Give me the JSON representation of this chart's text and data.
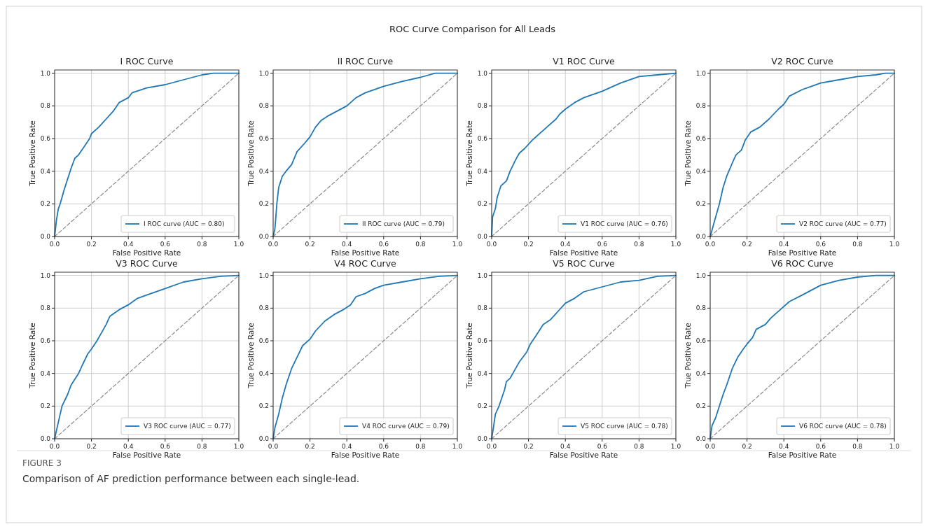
{
  "chart_data": [
    {
      "type": "line",
      "title": "I ROC Curve",
      "xlabel": "False Positive Rate",
      "ylabel": "True Positive Rate",
      "annotations": [
        "ROC Curve Comparison for All Leads"
      ],
      "xlim": [
        0,
        1
      ],
      "ylim": [
        0,
        1.02
      ],
      "xticks": [
        {
          "value": 0,
          "label": "0.0"
        },
        {
          "value": 0.2,
          "label": "0.2"
        },
        {
          "value": 0.4,
          "label": "0.4"
        },
        {
          "value": 0.6,
          "label": "0.6"
        },
        {
          "value": 0.8,
          "label": "0.8"
        },
        {
          "value": 1,
          "label": "1.0"
        }
      ],
      "yticks": [
        {
          "value": 0,
          "label": "0.0"
        },
        {
          "value": 0.2,
          "label": "0.2"
        },
        {
          "value": 0.4,
          "label": "0.4"
        },
        {
          "value": 0.6,
          "label": "0.6"
        },
        {
          "value": 0.8,
          "label": "0.8"
        },
        {
          "value": 1,
          "label": "1.0"
        }
      ],
      "grid": true,
      "legend": "bottom right",
      "series": [
        {
          "name": "I ROC curve (AUC = 0.80)",
          "color": "#1f77b4",
          "x": [
            0,
            0.01,
            0.02,
            0.03,
            0.05,
            0.07,
            0.09,
            0.11,
            0.13,
            0.16,
            0.19,
            0.2,
            0.24,
            0.28,
            0.32,
            0.35,
            0.4,
            0.42,
            0.5,
            0.6,
            0.7,
            0.8,
            0.86,
            1
          ],
          "values": [
            0,
            0.1,
            0.17,
            0.2,
            0.28,
            0.35,
            0.42,
            0.48,
            0.5,
            0.55,
            0.6,
            0.63,
            0.67,
            0.72,
            0.77,
            0.82,
            0.85,
            0.88,
            0.91,
            0.93,
            0.96,
            0.99,
            1,
            1
          ]
        },
        {
          "color": "#808080",
          "line_style": "dashed",
          "x": [
            0,
            1
          ],
          "values": [
            0,
            1
          ]
        }
      ]
    },
    {
      "type": "line",
      "title": "II ROC Curve",
      "xlabel": "False Positive Rate",
      "ylabel": "True Positive Rate",
      "xlim": [
        0,
        1
      ],
      "ylim": [
        0,
        1.02
      ],
      "xticks": [
        {
          "value": 0,
          "label": "0.0"
        },
        {
          "value": 0.2,
          "label": "0.2"
        },
        {
          "value": 0.4,
          "label": "0.4"
        },
        {
          "value": 0.6,
          "label": "0.6"
        },
        {
          "value": 0.8,
          "label": "0.8"
        },
        {
          "value": 1,
          "label": "1.0"
        }
      ],
      "yticks": [
        {
          "value": 0,
          "label": "0.0"
        },
        {
          "value": 0.2,
          "label": "0.2"
        },
        {
          "value": 0.4,
          "label": "0.4"
        },
        {
          "value": 0.6,
          "label": "0.6"
        },
        {
          "value": 0.8,
          "label": "0.8"
        },
        {
          "value": 1,
          "label": "1.0"
        }
      ],
      "grid": true,
      "legend": "bottom right",
      "series": [
        {
          "name": "II ROC curve (AUC = 0.79)",
          "color": "#1f77b4",
          "x": [
            0,
            0.01,
            0.02,
            0.03,
            0.05,
            0.07,
            0.1,
            0.13,
            0.17,
            0.2,
            0.23,
            0.26,
            0.3,
            0.35,
            0.4,
            0.45,
            0.5,
            0.6,
            0.7,
            0.8,
            0.88,
            1
          ],
          "values": [
            0,
            0.05,
            0.2,
            0.3,
            0.37,
            0.4,
            0.44,
            0.52,
            0.57,
            0.61,
            0.67,
            0.71,
            0.74,
            0.77,
            0.8,
            0.85,
            0.88,
            0.92,
            0.95,
            0.975,
            1,
            1
          ]
        },
        {
          "color": "#808080",
          "line_style": "dashed",
          "x": [
            0,
            1
          ],
          "values": [
            0,
            1
          ]
        }
      ]
    },
    {
      "type": "line",
      "title": "V1 ROC Curve",
      "xlabel": "False Positive Rate",
      "ylabel": "True Positive Rate",
      "xlim": [
        0,
        1
      ],
      "ylim": [
        0,
        1.02
      ],
      "xticks": [
        {
          "value": 0,
          "label": "0.0"
        },
        {
          "value": 0.2,
          "label": "0.2"
        },
        {
          "value": 0.4,
          "label": "0.4"
        },
        {
          "value": 0.6,
          "label": "0.6"
        },
        {
          "value": 0.8,
          "label": "0.8"
        },
        {
          "value": 1,
          "label": "1.0"
        }
      ],
      "yticks": [
        {
          "value": 0,
          "label": "0.0"
        },
        {
          "value": 0.2,
          "label": "0.2"
        },
        {
          "value": 0.4,
          "label": "0.4"
        },
        {
          "value": 0.6,
          "label": "0.6"
        },
        {
          "value": 0.8,
          "label": "0.8"
        },
        {
          "value": 1,
          "label": "1.0"
        }
      ],
      "grid": true,
      "legend": "bottom right",
      "series": [
        {
          "name": "V1 ROC curve (AUC = 0.76)",
          "color": "#1f77b4",
          "x": [
            0,
            0.005,
            0.02,
            0.03,
            0.05,
            0.08,
            0.1,
            0.13,
            0.15,
            0.18,
            0.22,
            0.27,
            0.3,
            0.35,
            0.37,
            0.4,
            0.45,
            0.5,
            0.6,
            0.7,
            0.8,
            0.9,
            1
          ],
          "values": [
            0,
            0.12,
            0.17,
            0.24,
            0.31,
            0.34,
            0.4,
            0.47,
            0.51,
            0.54,
            0.59,
            0.64,
            0.67,
            0.72,
            0.75,
            0.78,
            0.82,
            0.85,
            0.89,
            0.94,
            0.98,
            0.99,
            1
          ]
        },
        {
          "color": "#808080",
          "line_style": "dashed",
          "x": [
            0,
            1
          ],
          "values": [
            0,
            1
          ]
        }
      ]
    },
    {
      "type": "line",
      "title": "V2 ROC Curve",
      "xlabel": "False Positive Rate",
      "ylabel": "True Positive Rate",
      "xlim": [
        0,
        1
      ],
      "ylim": [
        0,
        1.02
      ],
      "xticks": [
        {
          "value": 0,
          "label": "0.0"
        },
        {
          "value": 0.2,
          "label": "0.2"
        },
        {
          "value": 0.4,
          "label": "0.4"
        },
        {
          "value": 0.6,
          "label": "0.6"
        },
        {
          "value": 0.8,
          "label": "0.8"
        },
        {
          "value": 1,
          "label": "1.0"
        }
      ],
      "yticks": [
        {
          "value": 0,
          "label": "0.0"
        },
        {
          "value": 0.2,
          "label": "0.2"
        },
        {
          "value": 0.4,
          "label": "0.4"
        },
        {
          "value": 0.6,
          "label": "0.6"
        },
        {
          "value": 0.8,
          "label": "0.8"
        },
        {
          "value": 1,
          "label": "1.0"
        }
      ],
      "grid": true,
      "legend": "bottom right",
      "series": [
        {
          "name": "V2 ROC curve (AUC = 0.77)",
          "color": "#1f77b4",
          "x": [
            0,
            0.02,
            0.05,
            0.07,
            0.09,
            0.12,
            0.14,
            0.17,
            0.19,
            0.22,
            0.27,
            0.32,
            0.37,
            0.4,
            0.43,
            0.5,
            0.55,
            0.6,
            0.7,
            0.8,
            0.9,
            0.95,
            1
          ],
          "values": [
            0,
            0.08,
            0.2,
            0.3,
            0.37,
            0.45,
            0.5,
            0.53,
            0.59,
            0.64,
            0.67,
            0.72,
            0.78,
            0.81,
            0.86,
            0.9,
            0.92,
            0.94,
            0.96,
            0.98,
            0.99,
            1,
            1
          ]
        },
        {
          "color": "#808080",
          "line_style": "dashed",
          "x": [
            0,
            1
          ],
          "values": [
            0,
            1
          ]
        }
      ]
    },
    {
      "type": "line",
      "title": "V3 ROC Curve",
      "xlabel": "False Positive Rate",
      "ylabel": "True Positive Rate",
      "xlim": [
        0,
        1
      ],
      "ylim": [
        0,
        1.02
      ],
      "xticks": [
        {
          "value": 0,
          "label": "0.0"
        },
        {
          "value": 0.2,
          "label": "0.2"
        },
        {
          "value": 0.4,
          "label": "0.4"
        },
        {
          "value": 0.6,
          "label": "0.6"
        },
        {
          "value": 0.8,
          "label": "0.8"
        },
        {
          "value": 1,
          "label": "1.0"
        }
      ],
      "yticks": [
        {
          "value": 0,
          "label": "0.0"
        },
        {
          "value": 0.2,
          "label": "0.2"
        },
        {
          "value": 0.4,
          "label": "0.4"
        },
        {
          "value": 0.6,
          "label": "0.6"
        },
        {
          "value": 0.8,
          "label": "0.8"
        },
        {
          "value": 1,
          "label": "1.0"
        }
      ],
      "grid": true,
      "legend": "bottom right",
      "series": [
        {
          "name": "V3 ROC curve (AUC = 0.77)",
          "color": "#1f77b4",
          "x": [
            0,
            0.02,
            0.04,
            0.07,
            0.09,
            0.13,
            0.15,
            0.18,
            0.2,
            0.23,
            0.25,
            0.28,
            0.3,
            0.35,
            0.4,
            0.45,
            0.5,
            0.6,
            0.7,
            0.8,
            0.9,
            1
          ],
          "values": [
            0,
            0.1,
            0.2,
            0.27,
            0.33,
            0.4,
            0.45,
            0.52,
            0.55,
            0.6,
            0.64,
            0.7,
            0.75,
            0.79,
            0.82,
            0.86,
            0.88,
            0.92,
            0.96,
            0.98,
            0.995,
            1
          ]
        },
        {
          "color": "#808080",
          "line_style": "dashed",
          "x": [
            0,
            1
          ],
          "values": [
            0,
            1
          ]
        }
      ]
    },
    {
      "type": "line",
      "title": "V4 ROC Curve",
      "xlabel": "False Positive Rate",
      "ylabel": "True Positive Rate",
      "xlim": [
        0,
        1
      ],
      "ylim": [
        0,
        1.02
      ],
      "xticks": [
        {
          "value": 0,
          "label": "0.0"
        },
        {
          "value": 0.2,
          "label": "0.2"
        },
        {
          "value": 0.4,
          "label": "0.4"
        },
        {
          "value": 0.6,
          "label": "0.6"
        },
        {
          "value": 0.8,
          "label": "0.8"
        },
        {
          "value": 1,
          "label": "1.0"
        }
      ],
      "yticks": [
        {
          "value": 0,
          "label": "0.0"
        },
        {
          "value": 0.2,
          "label": "0.2"
        },
        {
          "value": 0.4,
          "label": "0.4"
        },
        {
          "value": 0.6,
          "label": "0.6"
        },
        {
          "value": 0.8,
          "label": "0.8"
        },
        {
          "value": 1,
          "label": "1.0"
        }
      ],
      "grid": true,
      "legend": "bottom right",
      "series": [
        {
          "name": "V4 ROC curve (AUC = 0.79)",
          "color": "#1f77b4",
          "x": [
            0,
            0.01,
            0.03,
            0.05,
            0.07,
            0.1,
            0.13,
            0.16,
            0.2,
            0.23,
            0.28,
            0.33,
            0.38,
            0.42,
            0.45,
            0.5,
            0.55,
            0.6,
            0.7,
            0.8,
            0.9,
            1
          ],
          "values": [
            0,
            0.07,
            0.15,
            0.25,
            0.33,
            0.43,
            0.5,
            0.57,
            0.61,
            0.66,
            0.72,
            0.76,
            0.79,
            0.82,
            0.87,
            0.89,
            0.92,
            0.94,
            0.96,
            0.98,
            0.995,
            1
          ]
        },
        {
          "color": "#808080",
          "line_style": "dashed",
          "x": [
            0,
            1
          ],
          "values": [
            0,
            1
          ]
        }
      ]
    },
    {
      "type": "line",
      "title": "V5 ROC Curve",
      "xlabel": "False Positive Rate",
      "ylabel": "True Positive Rate",
      "xlim": [
        0,
        1
      ],
      "ylim": [
        0,
        1.02
      ],
      "xticks": [
        {
          "value": 0,
          "label": "0.0"
        },
        {
          "value": 0.2,
          "label": "0.2"
        },
        {
          "value": 0.4,
          "label": "0.4"
        },
        {
          "value": 0.6,
          "label": "0.6"
        },
        {
          "value": 0.8,
          "label": "0.8"
        },
        {
          "value": 1,
          "label": "1.0"
        }
      ],
      "yticks": [
        {
          "value": 0,
          "label": "0.0"
        },
        {
          "value": 0.2,
          "label": "0.2"
        },
        {
          "value": 0.4,
          "label": "0.4"
        },
        {
          "value": 0.6,
          "label": "0.6"
        },
        {
          "value": 0.8,
          "label": "0.8"
        },
        {
          "value": 1,
          "label": "1.0"
        }
      ],
      "grid": true,
      "legend": "bottom right",
      "series": [
        {
          "name": "V5 ROC curve (AUC = 0.78)",
          "color": "#1f77b4",
          "x": [
            0,
            0.01,
            0.02,
            0.04,
            0.07,
            0.08,
            0.1,
            0.13,
            0.15,
            0.19,
            0.21,
            0.24,
            0.28,
            0.32,
            0.36,
            0.4,
            0.45,
            0.5,
            0.6,
            0.7,
            0.8,
            0.9,
            1
          ],
          "values": [
            0,
            0.07,
            0.15,
            0.2,
            0.3,
            0.35,
            0.37,
            0.43,
            0.47,
            0.53,
            0.58,
            0.63,
            0.7,
            0.73,
            0.78,
            0.83,
            0.86,
            0.9,
            0.93,
            0.96,
            0.97,
            0.995,
            1
          ]
        },
        {
          "color": "#808080",
          "line_style": "dashed",
          "x": [
            0,
            1
          ],
          "values": [
            0,
            1
          ]
        }
      ]
    },
    {
      "type": "line",
      "title": "V6 ROC Curve",
      "xlabel": "False Positive Rate",
      "ylabel": "True Positive Rate",
      "annotations": [
        "FIGURE 3",
        "Comparison of AF prediction performance between each single-lead."
      ],
      "xlim": [
        0,
        1
      ],
      "ylim": [
        0,
        1.02
      ],
      "xticks": [
        {
          "value": 0,
          "label": "0.0"
        },
        {
          "value": 0.2,
          "label": "0.2"
        },
        {
          "value": 0.4,
          "label": "0.4"
        },
        {
          "value": 0.6,
          "label": "0.6"
        },
        {
          "value": 0.8,
          "label": "0.8"
        },
        {
          "value": 1,
          "label": "1.0"
        }
      ],
      "yticks": [
        {
          "value": 0,
          "label": "0.0"
        },
        {
          "value": 0.2,
          "label": "0.2"
        },
        {
          "value": 0.4,
          "label": "0.4"
        },
        {
          "value": 0.6,
          "label": "0.6"
        },
        {
          "value": 0.8,
          "label": "0.8"
        },
        {
          "value": 1,
          "label": "1.0"
        }
      ],
      "grid": true,
      "legend": "bottom right",
      "series": [
        {
          "name": "V6 ROC curve (AUC = 0.78)",
          "color": "#1f77b4",
          "x": [
            0,
            0.01,
            0.03,
            0.05,
            0.07,
            0.09,
            0.12,
            0.15,
            0.18,
            0.2,
            0.23,
            0.25,
            0.3,
            0.33,
            0.38,
            0.43,
            0.5,
            0.6,
            0.7,
            0.8,
            0.9,
            1
          ],
          "values": [
            0,
            0.08,
            0.13,
            0.2,
            0.27,
            0.33,
            0.43,
            0.5,
            0.55,
            0.58,
            0.62,
            0.67,
            0.7,
            0.74,
            0.79,
            0.84,
            0.88,
            0.94,
            0.97,
            0.99,
            1,
            1
          ]
        },
        {
          "color": "#808080",
          "line_style": "dashed",
          "x": [
            0,
            1
          ],
          "values": [
            0,
            1
          ]
        }
      ]
    }
  ]
}
